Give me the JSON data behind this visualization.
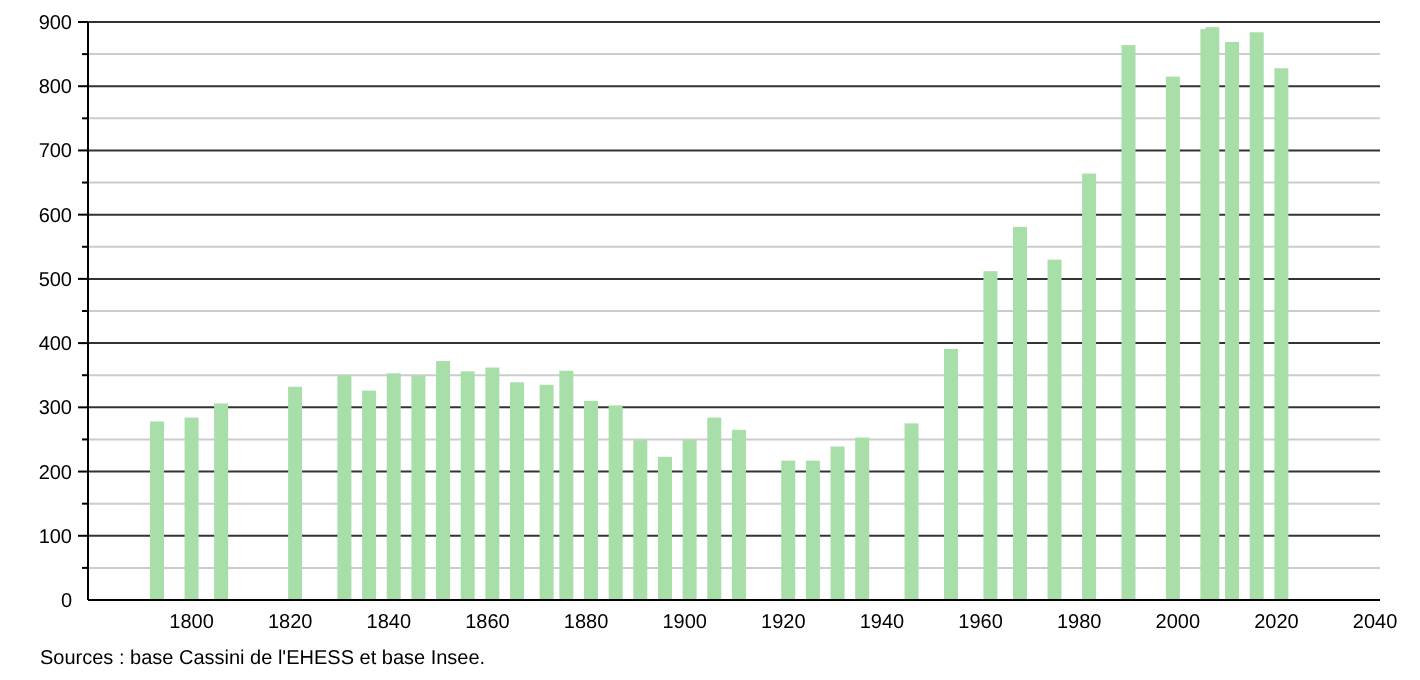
{
  "chart_data": {
    "type": "bar",
    "x": [
      1793,
      1800,
      1806,
      1821,
      1831,
      1836,
      1841,
      1846,
      1851,
      1856,
      1861,
      1866,
      1872,
      1876,
      1881,
      1886,
      1891,
      1896,
      1901,
      1906,
      1911,
      1921,
      1926,
      1931,
      1936,
      1946,
      1954,
      1962,
      1968,
      1975,
      1982,
      1990,
      1999,
      2006,
      2007,
      2011,
      2016,
      2021
    ],
    "values": [
      278,
      284,
      306,
      332,
      350,
      326,
      353,
      349,
      372,
      356,
      362,
      339,
      335,
      357,
      310,
      303,
      249,
      223,
      249,
      284,
      265,
      217,
      217,
      239,
      253,
      275,
      391,
      512,
      581,
      530,
      664,
      864,
      815,
      889,
      892,
      869,
      884,
      828
    ],
    "color": "#a8dfa8",
    "xlim": [
      1779,
      2041
    ],
    "xticks": [
      1800,
      1820,
      1840,
      1860,
      1880,
      1900,
      1920,
      1940,
      1960,
      1980,
      2000,
      2020,
      2040
    ],
    "ylim": [
      0,
      900
    ],
    "yticks": [
      0,
      {
        "value": 50,
        "label": null
      },
      100,
      {
        "value": 150,
        "label": null
      },
      200,
      {
        "value": 250,
        "label": null
      },
      300,
      {
        "value": 350,
        "label": null
      },
      400,
      {
        "value": 450,
        "label": null
      },
      500,
      {
        "value": 550,
        "label": null
      },
      600,
      {
        "value": 650,
        "label": null
      },
      700,
      {
        "value": 750,
        "label": null
      },
      800,
      {
        "value": 850,
        "label": null
      },
      900
    ],
    "grid": true,
    "annotations": [
      "Sources : base Cassini de l'EHESS et base Insee."
    ]
  }
}
